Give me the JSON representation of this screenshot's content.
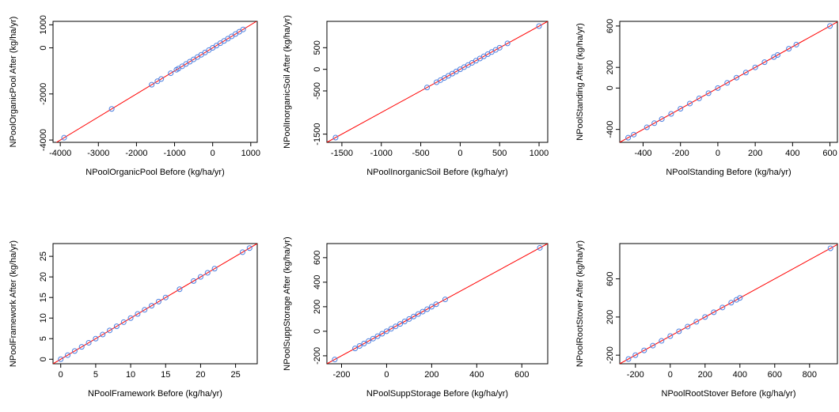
{
  "chart_data": [
    {
      "type": "scatter",
      "xlabel": "NPoolOrganicPool Before (kg/ha/yr)",
      "ylabel": "NPoolOrganicPool After (kg/ha/yr)",
      "x": [
        -3900,
        -2650,
        -1600,
        -1450,
        -1350,
        -1100,
        -950,
        -900,
        -800,
        -700,
        -600,
        -500,
        -400,
        -300,
        -200,
        -100,
        0,
        100,
        200,
        300,
        400,
        500,
        600,
        700,
        800
      ],
      "values": [
        -3900,
        -2650,
        -1600,
        -1450,
        -1350,
        -1100,
        -950,
        -900,
        -800,
        -700,
        -600,
        -500,
        -400,
        -300,
        -200,
        -100,
        0,
        100,
        200,
        300,
        400,
        500,
        600,
        700,
        800
      ],
      "xlim": [
        -4190,
        1170
      ],
      "ylim": [
        -4100,
        1150
      ],
      "xticks": [
        -4000,
        -3000,
        -2000,
        -1000,
        0,
        1000
      ],
      "yticks": [
        -4000,
        -2000,
        0,
        1000
      ],
      "point_color": "#4a7ee0",
      "line_color": "#ff0000"
    },
    {
      "type": "scatter",
      "xlabel": "NPoolInorganicSoil Before (kg/ha/yr)",
      "ylabel": "NPoolInorganicSoil After (kg/ha/yr)",
      "x": [
        -1580,
        -420,
        -300,
        -250,
        -200,
        -150,
        -100,
        -50,
        0,
        50,
        100,
        150,
        200,
        250,
        300,
        350,
        400,
        450,
        500,
        600,
        1000
      ],
      "values": [
        -1580,
        -420,
        -300,
        -250,
        -200,
        -150,
        -100,
        -50,
        0,
        50,
        100,
        150,
        200,
        250,
        300,
        350,
        400,
        450,
        500,
        600,
        1000
      ],
      "xlim": [
        -1690,
        1110
      ],
      "ylim": [
        -1690,
        1110
      ],
      "xticks": [
        -1500,
        -1000,
        -500,
        0,
        500,
        1000
      ],
      "yticks": [
        -1500,
        -500,
        0,
        500
      ],
      "point_color": "#4a7ee0",
      "line_color": "#ff0000"
    },
    {
      "type": "scatter",
      "xlabel": "NPoolStanding Before (kg/ha/yr)",
      "ylabel": "NPoolStanding After (kg/ha/yr)",
      "x": [
        -480,
        -450,
        -380,
        -340,
        -300,
        -250,
        -200,
        -150,
        -100,
        -50,
        0,
        50,
        100,
        150,
        200,
        250,
        300,
        320,
        380,
        420,
        600
      ],
      "values": [
        -480,
        -450,
        -380,
        -340,
        -300,
        -250,
        -200,
        -150,
        -100,
        -50,
        0,
        50,
        100,
        150,
        200,
        250,
        300,
        320,
        380,
        420,
        600
      ],
      "xlim": [
        -525,
        640
      ],
      "ylim": [
        -525,
        645
      ],
      "xticks": [
        -400,
        -200,
        0,
        200,
        400,
        600
      ],
      "yticks": [
        -400,
        0,
        200,
        600
      ],
      "point_color": "#4a7ee0",
      "line_color": "#ff0000"
    },
    {
      "type": "scatter",
      "xlabel": "NPoolFramework Before (kg/ha/yr)",
      "ylabel": "NPoolFramework After (kg/ha/yr)",
      "x": [
        0,
        1,
        2,
        3,
        4,
        5,
        6,
        7,
        8,
        9,
        10,
        11,
        12,
        13,
        14,
        15,
        17,
        19,
        20,
        21,
        22,
        26,
        27
      ],
      "values": [
        0,
        1,
        2,
        3,
        4,
        5,
        6,
        7,
        8,
        9,
        10,
        11,
        12,
        13,
        14,
        15,
        17,
        19,
        20,
        21,
        22,
        26,
        27
      ],
      "xlim": [
        -1.1,
        28.1
      ],
      "ylim": [
        -1.1,
        28.1
      ],
      "xticks": [
        0,
        5,
        10,
        15,
        20,
        25
      ],
      "yticks": [
        0,
        5,
        10,
        15,
        20,
        25
      ],
      "point_color": "#4a7ee0",
      "line_color": "#ff0000"
    },
    {
      "type": "scatter",
      "xlabel": "NPoolSuppStorage Before (kg/ha/yr)",
      "ylabel": "NPoolSuppStorage After (kg/ha/yr)",
      "x": [
        -230,
        -140,
        -120,
        -100,
        -80,
        -60,
        -40,
        -20,
        0,
        20,
        40,
        60,
        80,
        100,
        120,
        140,
        160,
        180,
        200,
        220,
        260,
        680
      ],
      "values": [
        -230,
        -140,
        -120,
        -100,
        -80,
        -60,
        -40,
        -20,
        0,
        20,
        40,
        60,
        80,
        100,
        120,
        140,
        160,
        180,
        200,
        220,
        260,
        680
      ],
      "xlim": [
        -265,
        715
      ],
      "ylim": [
        -265,
        715
      ],
      "xticks": [
        -200,
        0,
        200,
        400,
        600
      ],
      "yticks": [
        -200,
        0,
        200,
        400,
        600
      ],
      "point_color": "#4a7ee0",
      "line_color": "#ff0000"
    },
    {
      "type": "scatter",
      "xlabel": "NPoolRootStover Before (kg/ha/yr)",
      "ylabel": "NPoolRootStover After (kg/ha/yr)",
      "x": [
        -240,
        -200,
        -150,
        -100,
        -50,
        0,
        50,
        100,
        150,
        200,
        250,
        300,
        350,
        380,
        400,
        920
      ],
      "values": [
        -240,
        -200,
        -150,
        -100,
        -50,
        0,
        50,
        100,
        150,
        200,
        250,
        300,
        350,
        380,
        400,
        920
      ],
      "xlim": [
        -290,
        960
      ],
      "ylim": [
        -290,
        970
      ],
      "xticks": [
        -200,
        0,
        200,
        400,
        600,
        800
      ],
      "yticks": [
        -200,
        200,
        600
      ],
      "point_color": "#4a7ee0",
      "line_color": "#ff0000"
    }
  ]
}
